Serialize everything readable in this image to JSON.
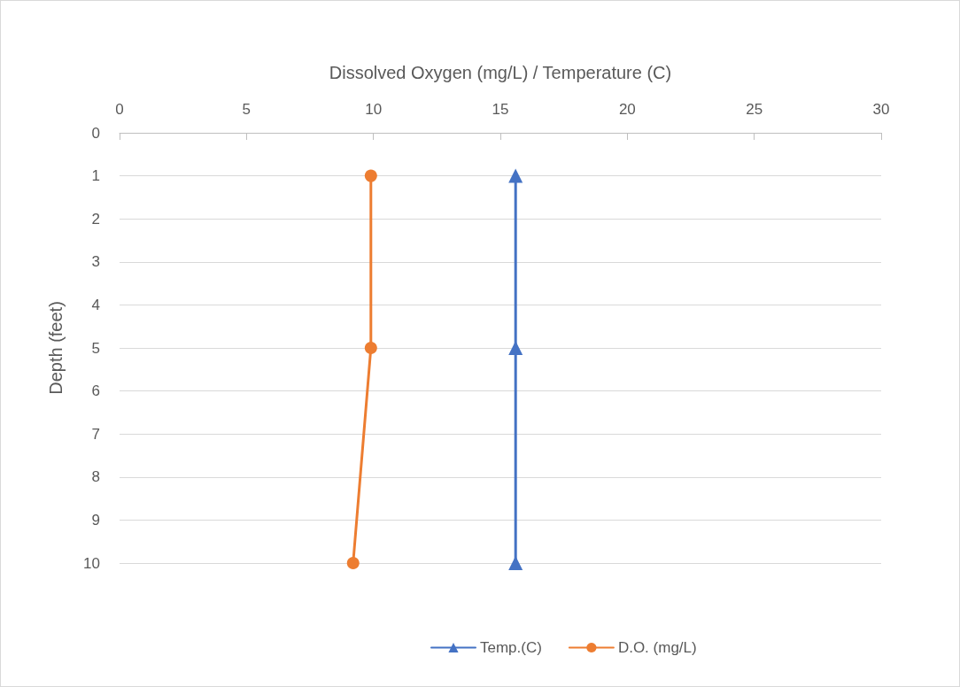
{
  "chart_data": {
    "type": "line",
    "xlabel": "Dissolved Oxygen (mg/L) / Temperature (C)",
    "ylabel": "Depth (feet)",
    "xlim": [
      0,
      30
    ],
    "xticks": [
      0,
      5,
      10,
      15,
      20,
      25,
      30
    ],
    "ylim": [
      10,
      0
    ],
    "yticks": [
      0,
      1,
      2,
      3,
      4,
      5,
      6,
      7,
      8,
      9,
      10
    ],
    "grid": "y",
    "legend": "bottom",
    "line_style": "solid",
    "series": [
      {
        "name": "Temp.(C)",
        "color": "#4472c4",
        "marker": "triangle",
        "x": [
          15.6,
          15.6,
          15.6
        ],
        "values": [
          1,
          5,
          10
        ]
      },
      {
        "name": "D.O. (mg/L)",
        "color": "#ed7d31",
        "marker": "circle",
        "x": [
          9.9,
          9.9,
          9.2
        ],
        "values": [
          1,
          5,
          10
        ]
      }
    ]
  }
}
